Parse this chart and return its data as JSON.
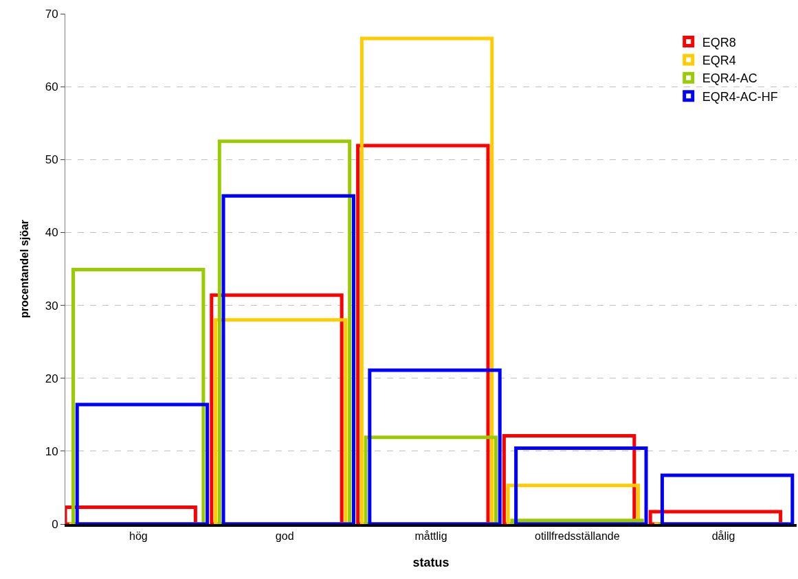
{
  "chart_data": {
    "type": "bar",
    "xlabel": "status",
    "ylabel": "procentandel sjöar",
    "categories": [
      "hög",
      "god",
      "måttlig",
      "otillfredsställande",
      "dålig"
    ],
    "series": [
      {
        "name": "EQR8",
        "color": "#ff0000",
        "values": [
          2.3,
          31.4,
          51.9,
          12.1,
          1.7
        ]
      },
      {
        "name": "EQR4",
        "color": "#ffcc00",
        "values": [
          0,
          28.0,
          66.6,
          5.3,
          0
        ]
      },
      {
        "name": "EQR4-AC",
        "color": "#99cc00",
        "values": [
          34.9,
          52.5,
          11.9,
          0.5,
          0
        ]
      },
      {
        "name": "EQR4-AC-HF",
        "color": "#0000ff",
        "values": [
          16.4,
          45.0,
          21.1,
          10.4,
          6.7
        ]
      }
    ],
    "ylim": [
      0,
      70
    ],
    "yticks": [
      0,
      10,
      20,
      30,
      40,
      50,
      60,
      70
    ],
    "grid": "y",
    "legend": "top right"
  }
}
